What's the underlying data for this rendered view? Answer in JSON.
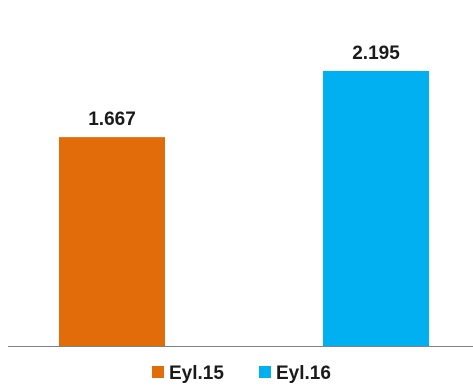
{
  "chart_data": {
    "type": "bar",
    "categories": [
      "Eyl.15",
      "Eyl.16"
    ],
    "values": [
      1.667,
      2.195
    ],
    "value_labels": [
      "1.667",
      "2.195"
    ],
    "colors": [
      "#e36c0a",
      "#00b0f0"
    ],
    "ylim": [
      0,
      2.49
    ],
    "grid": false,
    "legend": {
      "position": "bottom",
      "entries": [
        "Eyl.15",
        "Eyl.16"
      ]
    },
    "axis_color": "#808080"
  }
}
